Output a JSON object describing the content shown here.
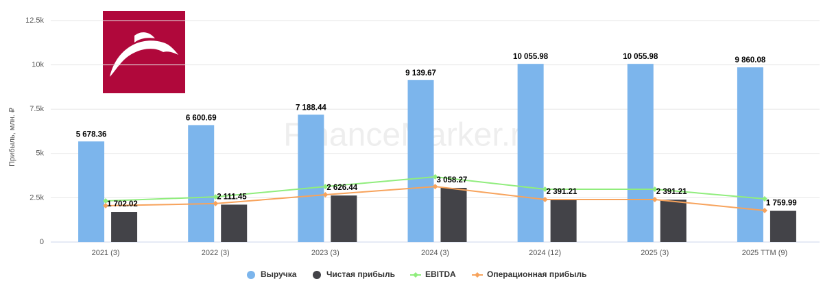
{
  "chart_data": {
    "type": "bar",
    "watermark": "FinanceMarker.ru",
    "y_label": "Прибыль, млн. ₽",
    "categories": [
      "2021 (3)",
      "2022 (3)",
      "2023 (3)",
      "2024 (3)",
      "2024 (12)",
      "2025 (3)",
      "2025 TTM (9)"
    ],
    "ylim": [
      0,
      12500
    ],
    "yticks": [
      0,
      {
        "value": 2500,
        "label": "2.5k"
      },
      {
        "value": 5000,
        "label": "5k"
      },
      {
        "value": 7500,
        "label": "7.5k"
      },
      {
        "value": 10000,
        "label": "10k"
      },
      {
        "value": 12500,
        "label": "12.5k"
      }
    ],
    "grid": true,
    "legend": "bottom",
    "series": [
      {
        "name": "Выручка",
        "type": "bar",
        "color": "#7cb5ec",
        "values": [
          5678.36,
          6600.69,
          7188.44,
          9139.67,
          10055.98,
          10055.98,
          9860.08
        ],
        "value_labels": [
          "5 678.36",
          "6 600.69",
          "7 188.44",
          "9 139.67",
          "10 055.98",
          "10 055.98",
          "9 860.08"
        ]
      },
      {
        "name": "Чистая прибыль",
        "type": "bar",
        "color": "#434348",
        "values": [
          1702.02,
          2111.45,
          2626.44,
          3058.27,
          2391.21,
          2391.21,
          1759.99
        ],
        "value_labels": [
          "1 702.02",
          "2 111.45",
          "2 626.44",
          "3 058.27",
          "2 391.21",
          "2 391.21",
          "1 759.99"
        ]
      },
      {
        "name": "EBITDA",
        "type": "line",
        "color": "#90ed7d",
        "values": [
          2320,
          2550,
          3130,
          3680,
          2980,
          2980,
          2440
        ]
      },
      {
        "name": "Операционная прибыль",
        "type": "line",
        "color": "#f7a35c",
        "values": [
          2050,
          2170,
          2670,
          3130,
          2400,
          2400,
          1780
        ]
      }
    ]
  }
}
